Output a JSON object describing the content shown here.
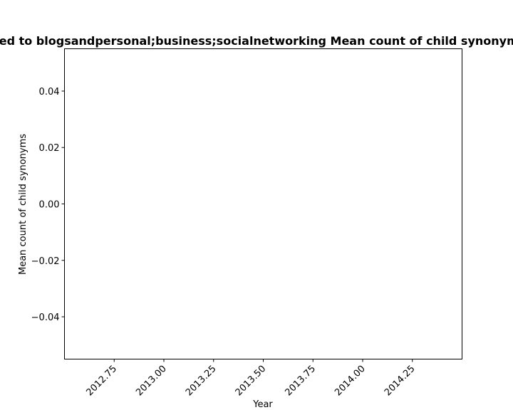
{
  "chart_data": {
    "type": "line",
    "title": "ed to blogsandpersonal;business;socialnetworking Mean count of child synonyms",
    "xlabel": "Year",
    "ylabel": "Mean count of child synonyms",
    "xlim": [
      2012.5,
      2014.5
    ],
    "ylim": [
      -0.055,
      0.055
    ],
    "x_ticks": [
      2012.75,
      2013.0,
      2013.25,
      2013.5,
      2013.75,
      2014.0,
      2014.25
    ],
    "x_tick_labels": [
      "2012.75",
      "2013.00",
      "2013.25",
      "2013.50",
      "2013.75",
      "2014.00",
      "2014.25"
    ],
    "y_ticks": [
      0.04,
      0.02,
      0.0,
      -0.02,
      -0.04
    ],
    "y_tick_labels": [
      "0.04",
      "0.02",
      "0.00",
      "−0.02",
      "−0.04"
    ],
    "series": [],
    "grid": false
  }
}
